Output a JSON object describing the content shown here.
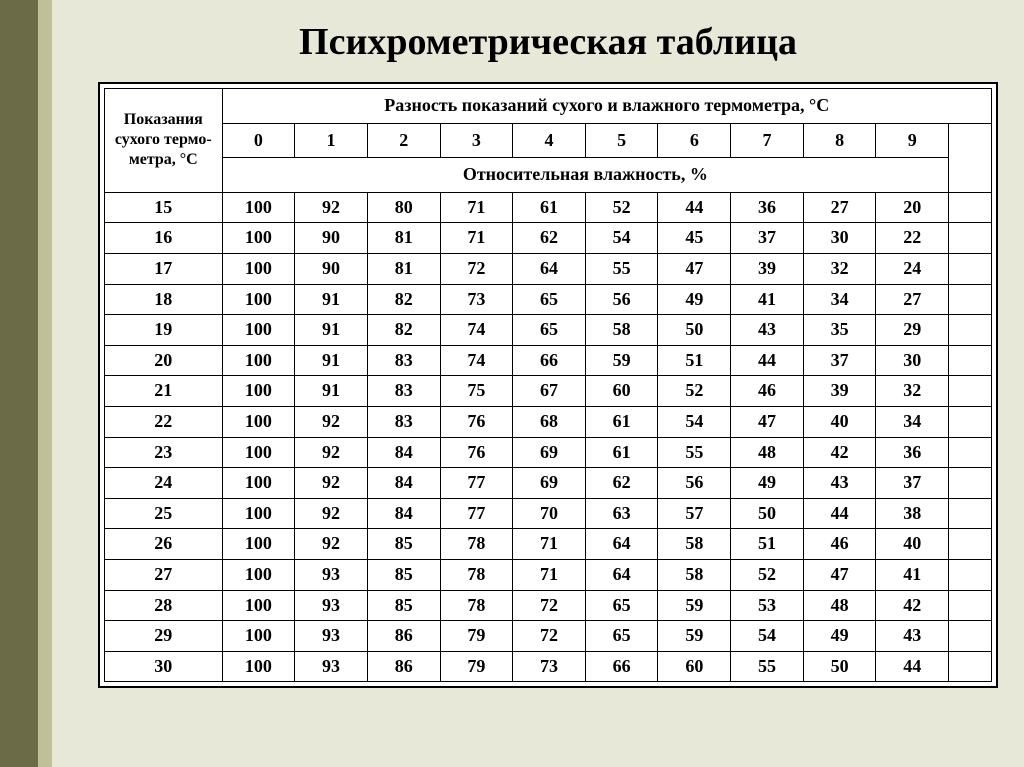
{
  "title": "Психрометрическая таблица",
  "table": {
    "header": {
      "row_label": "Показания сухого термо-метра, °С",
      "diff_label": "Разность показаний сухого и влажного термометра, °С",
      "humidity_label": "Относительная влажность, %",
      "diff_values": [
        "0",
        "1",
        "2",
        "3",
        "4",
        "5",
        "6",
        "7",
        "8",
        "9"
      ]
    },
    "rows": [
      {
        "t": "15",
        "v": [
          "100",
          "92",
          "80",
          "71",
          "61",
          "52",
          "44",
          "36",
          "27",
          "20"
        ]
      },
      {
        "t": "16",
        "v": [
          "100",
          "90",
          "81",
          "71",
          "62",
          "54",
          "45",
          "37",
          "30",
          "22"
        ]
      },
      {
        "t": "17",
        "v": [
          "100",
          "90",
          "81",
          "72",
          "64",
          "55",
          "47",
          "39",
          "32",
          "24"
        ]
      },
      {
        "t": "18",
        "v": [
          "100",
          "91",
          "82",
          "73",
          "65",
          "56",
          "49",
          "41",
          "34",
          "27"
        ]
      },
      {
        "t": "19",
        "v": [
          "100",
          "91",
          "82",
          "74",
          "65",
          "58",
          "50",
          "43",
          "35",
          "29"
        ]
      },
      {
        "t": "20",
        "v": [
          "100",
          "91",
          "83",
          "74",
          "66",
          "59",
          "51",
          "44",
          "37",
          "30"
        ]
      },
      {
        "t": "21",
        "v": [
          "100",
          "91",
          "83",
          "75",
          "67",
          "60",
          "52",
          "46",
          "39",
          "32"
        ]
      },
      {
        "t": "22",
        "v": [
          "100",
          "92",
          "83",
          "76",
          "68",
          "61",
          "54",
          "47",
          "40",
          "34"
        ]
      },
      {
        "t": "23",
        "v": [
          "100",
          "92",
          "84",
          "76",
          "69",
          "61",
          "55",
          "48",
          "42",
          "36"
        ]
      },
      {
        "t": "24",
        "v": [
          "100",
          "92",
          "84",
          "77",
          "69",
          "62",
          "56",
          "49",
          "43",
          "37"
        ]
      },
      {
        "t": "25",
        "v": [
          "100",
          "92",
          "84",
          "77",
          "70",
          "63",
          "57",
          "50",
          "44",
          "38"
        ]
      },
      {
        "t": "26",
        "v": [
          "100",
          "92",
          "85",
          "78",
          "71",
          "64",
          "58",
          "51",
          "46",
          "40"
        ]
      },
      {
        "t": "27",
        "v": [
          "100",
          "93",
          "85",
          "78",
          "71",
          "64",
          "58",
          "52",
          "47",
          "41"
        ]
      },
      {
        "t": "28",
        "v": [
          "100",
          "93",
          "85",
          "78",
          "72",
          "65",
          "59",
          "53",
          "48",
          "42"
        ]
      },
      {
        "t": "29",
        "v": [
          "100",
          "93",
          "86",
          "79",
          "72",
          "65",
          "59",
          "54",
          "49",
          "43"
        ]
      },
      {
        "t": "30",
        "v": [
          "100",
          "93",
          "86",
          "79",
          "73",
          "66",
          "60",
          "55",
          "50",
          "44"
        ]
      }
    ],
    "colors": {
      "background": "#e8e8d8",
      "stripe_dark": "#6b6b47",
      "stripe_light": "#c0c098",
      "table_bg": "#ffffff",
      "border": "#000000",
      "text": "#000000"
    },
    "font_sizes": {
      "title": 38,
      "header": 18,
      "cell": 18,
      "row_label_header": 16
    }
  }
}
